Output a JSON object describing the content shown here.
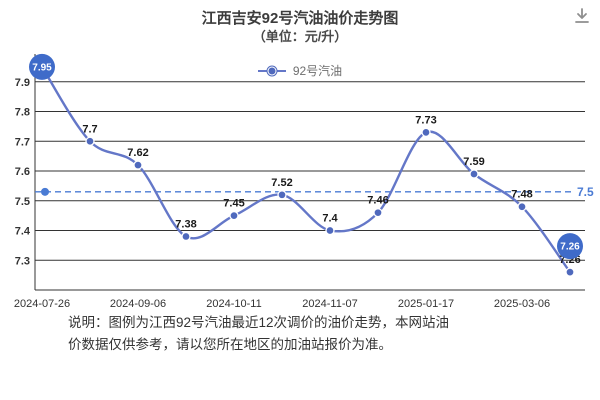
{
  "chart_data": {
    "type": "line",
    "title": "江西吉安92号汽油油价走势图",
    "subtitle": "（单位：元/升）",
    "legend": [
      "92号汽油"
    ],
    "series": [
      {
        "name": "92号汽油",
        "values": [
          7.95,
          7.7,
          7.62,
          7.38,
          7.45,
          7.52,
          7.4,
          7.46,
          7.73,
          7.59,
          7.48,
          7.26
        ]
      }
    ],
    "point_labels": [
      "7.95",
      "7.7",
      "7.62",
      "7.38",
      "7.45",
      "7.52",
      "7.4",
      "7.46",
      "7.73",
      "7.59",
      "7.48",
      "7.26"
    ],
    "x_tick_labels": [
      "2024-07-26",
      "2024-09-06",
      "2024-10-11",
      "2024-11-07",
      "2025-01-17",
      "2025-03-06"
    ],
    "x_tick_indices": [
      0,
      2,
      4,
      6,
      8,
      10
    ],
    "y_ticks": [
      7.3,
      7.4,
      7.5,
      7.6,
      7.7,
      7.8,
      7.9
    ],
    "ylim": [
      7.2,
      7.98
    ],
    "xlabel": "",
    "ylabel": "",
    "grid": true,
    "legend_position": "top-center",
    "reference_line": {
      "value": 7.53,
      "label": "7.5"
    },
    "badges": [
      {
        "index": 0,
        "label": "7.95"
      },
      {
        "index": 11,
        "label": "7.26"
      }
    ],
    "colors": {
      "line": "#6477c8",
      "dot": "#4f69bd",
      "badge": "#3f6bc9",
      "grid": "#333333",
      "reference": "#4a7bd4",
      "label": "#1a1a1a"
    }
  },
  "icons": {
    "download": "download-icon"
  },
  "note": {
    "line1": "说明：图例为江西92号汽油最近12次调价的油价走势，本网站油",
    "line2": "价数据仅供参考，请以您所在地区的加油站报价为准。"
  }
}
